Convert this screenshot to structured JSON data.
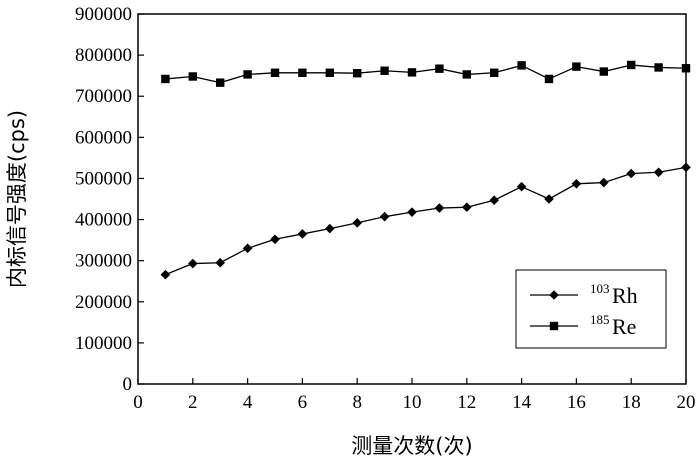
{
  "chart_data": {
    "type": "line",
    "xlabel": "测量次数(次)",
    "ylabel": "内标信号强度(cps)",
    "xlim": [
      0,
      20
    ],
    "ylim": [
      0,
      900000
    ],
    "xticks": [
      0,
      2,
      4,
      6,
      8,
      10,
      12,
      14,
      16,
      18,
      20
    ],
    "yticks": [
      0,
      100000,
      200000,
      300000,
      400000,
      500000,
      600000,
      700000,
      800000,
      900000
    ],
    "x": [
      1,
      2,
      3,
      4,
      5,
      6,
      7,
      8,
      9,
      10,
      11,
      12,
      13,
      14,
      15,
      16,
      17,
      18,
      19,
      20
    ],
    "series": [
      {
        "name": "103Rh",
        "name_sup": "103",
        "name_base": "Rh",
        "marker": "diamond",
        "values": [
          266000,
          293000,
          295000,
          330000,
          352000,
          365000,
          378000,
          392000,
          407000,
          418000,
          428000,
          430000,
          447000,
          480000,
          450000,
          487000,
          490000,
          512000,
          515000,
          527000
        ]
      },
      {
        "name": "185Re",
        "name_sup": "185",
        "name_base": "Re",
        "marker": "square",
        "values": [
          742000,
          748000,
          733000,
          753000,
          757000,
          757000,
          757000,
          756000,
          762000,
          758000,
          767000,
          753000,
          757000,
          775000,
          742000,
          772000,
          760000,
          776000,
          770000,
          768000
        ]
      }
    ],
    "grid": false,
    "legend_position": "bottom-right",
    "colors": {
      "line": "#000000",
      "marker": "#000000"
    }
  }
}
